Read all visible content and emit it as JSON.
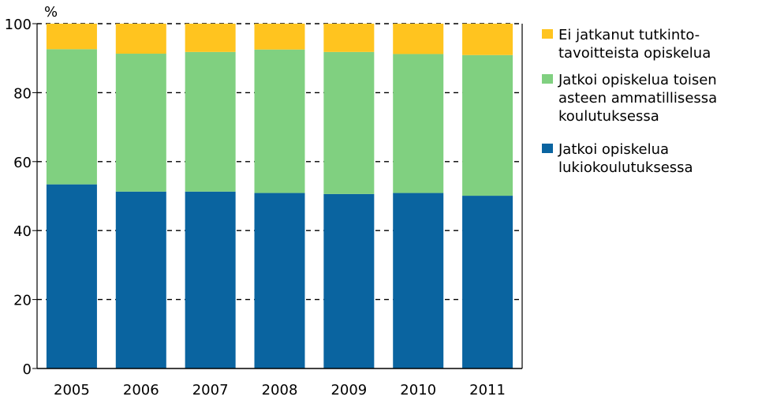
{
  "chart_data": {
    "type": "bar",
    "stacked": true,
    "unit_label": "%",
    "ylim": [
      0,
      100
    ],
    "y_ticks": [
      "0",
      "20",
      "40",
      "60",
      "80",
      "100"
    ],
    "grid": "horizontal dashed",
    "legend_position": "right",
    "categories": [
      "2005",
      "2006",
      "2007",
      "2008",
      "2009",
      "2010",
      "2011"
    ],
    "series": [
      {
        "name": "Jatkoi opiskelua lukiokoulutuksessa",
        "color": "#0a64a0",
        "values": [
          53.4,
          51.3,
          51.3,
          50.9,
          50.6,
          50.9,
          50.1
        ]
      },
      {
        "name": "Jatkoi opiskelua toisen asteen ammatillisessa koulutuksessa",
        "color": "#80d080",
        "values": [
          39.2,
          40.0,
          40.5,
          41.6,
          41.2,
          40.3,
          40.8
        ]
      },
      {
        "name": "Ei jatkanut tutkinto-tavoitteista opiskelua",
        "color": "#ffc41f",
        "values": [
          7.4,
          8.7,
          8.2,
          7.5,
          8.2,
          8.8,
          9.1
        ]
      }
    ],
    "legend": [
      {
        "series": 2,
        "lines": [
          "Ei jatkanut tutkinto-",
          "tavoitteista opiskelua"
        ]
      },
      {
        "series": 1,
        "lines": [
          "Jatkoi opiskelua toisen",
          "asteen ammatillisessa",
          "koulutuksessa"
        ]
      },
      {
        "series": 0,
        "lines": [
          "Jatkoi opiskelua",
          "lukiokoulutuksessa"
        ]
      }
    ]
  }
}
